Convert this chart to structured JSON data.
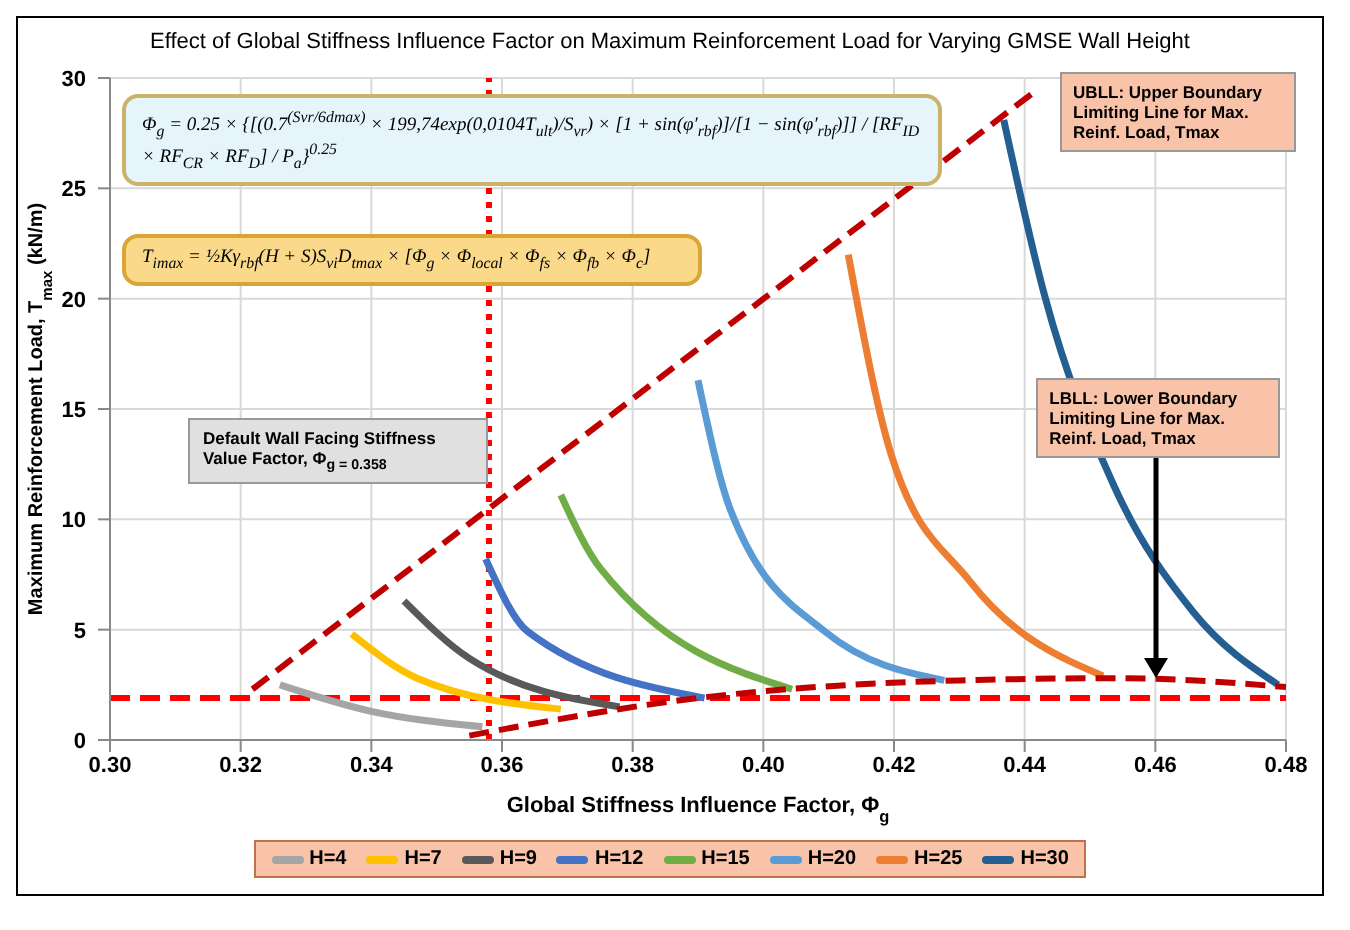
{
  "chart_data": {
    "type": "line",
    "title": "Effect of Global Stiffness Influence Factor on Maximum Reinforcement Load for Varying GMSE Wall Height",
    "xlabel": "Global Stiffness Influence Factor, Φ$_{g}$",
    "ylabel": "Maximum Reinforcement Load, T$_{max}$ (kN/m)",
    "xlim": [
      0.3,
      0.48
    ],
    "xticks": [
      {
        "value": 0.3,
        "label": "0.30"
      },
      {
        "value": 0.32,
        "label": "0.32"
      },
      {
        "value": 0.34,
        "label": "0.34"
      },
      {
        "value": 0.36,
        "label": "0.36"
      },
      {
        "value": 0.38,
        "label": "0.38"
      },
      {
        "value": 0.4,
        "label": "0.40"
      },
      {
        "value": 0.42,
        "label": "0.42"
      },
      {
        "value": 0.44,
        "label": "0.44"
      },
      {
        "value": 0.46,
        "label": "0.46"
      },
      {
        "value": 0.48,
        "label": "0.48"
      }
    ],
    "ylim": [
      0,
      30
    ],
    "yticks": [
      0,
      5,
      10,
      15,
      20,
      25,
      30
    ],
    "grid": true,
    "legend": "bottom",
    "marker": "none",
    "line_style": "solid",
    "series": [
      {
        "name": "H=4",
        "color": "#a5a5a5",
        "x": [
          0.326,
          0.34,
          0.357
        ],
        "values": [
          2.5,
          1.3,
          0.6
        ]
      },
      {
        "name": "H=7",
        "color": "#ffc000",
        "x": [
          0.337,
          0.347,
          0.369
        ],
        "values": [
          4.8,
          2.8,
          1.4
        ]
      },
      {
        "name": "H=9",
        "color": "#595959",
        "x": [
          0.345,
          0.355,
          0.378
        ],
        "values": [
          6.3,
          3.7,
          1.5
        ]
      },
      {
        "name": "H=12",
        "color": "#4472c4",
        "x": [
          0.3575,
          0.364,
          0.391
        ],
        "values": [
          8.2,
          4.9,
          1.9
        ]
      },
      {
        "name": "H=15",
        "color": "#70ad47",
        "x": [
          0.369,
          0.375,
          0.4044
        ],
        "values": [
          11.1,
          7.8,
          2.3
        ]
      },
      {
        "name": "H=20",
        "color": "#5b9bd5",
        "x": [
          0.39,
          0.395,
          0.4095,
          0.4277
        ],
        "values": [
          16.3,
          10.4,
          4.9,
          2.7
        ]
      },
      {
        "name": "H=25",
        "color": "#ed7d31",
        "x": [
          0.413,
          0.4195,
          0.4316,
          0.452
        ],
        "values": [
          22.0,
          13.0,
          7.2,
          2.9
        ]
      },
      {
        "name": "H=30",
        "color": "#255e91",
        "x": [
          0.4368,
          0.443,
          0.4537,
          0.4658,
          0.4788
        ],
        "values": [
          28.1,
          20.2,
          11.5,
          5.8,
          2.5
        ]
      },
      {
        "color": "#c00000",
        "line_style": "dashed",
        "x": [
          0.3218,
          0.4416
        ],
        "values": [
          2.3,
          29.4
        ]
      },
      {
        "color": "#c00000",
        "line_style": "dashed",
        "x": [
          0.355,
          0.39,
          0.43,
          0.455,
          0.48
        ],
        "values": [
          0.2,
          1.9,
          2.7,
          2.8,
          2.4
        ]
      }
    ],
    "ref_lines": [
      {
        "axis": "y",
        "value": 1.9,
        "color": "#ff0000",
        "line_style": "dashed"
      },
      {
        "axis": "x",
        "value": 0.358,
        "color": "#ff0000",
        "line_style": "dotted"
      }
    ],
    "annotations": [
      "Φ$_{g}$ = 0.25 × {[(0.7$^{(Svr/6dmax)}$ × 199,74exp(0,0104T$_{ult}$)/S$_{vr}$) × [1 + sin(φ′$_{rbf}$)]/[1 − sin(φ′$_{rbf}$)]] / [RF$_{ID}$ × RF$_{CR}$ × RF$_{D}$] / P$_{a}$}$^{0.25}$",
      "T$_{imax}$ = ½Kγ$_{rbf}$(H + S)S$_{vi}$D$_{tmax}$ × [Φ$_{g}$ × Φ$_{local}$ × Φ$_{fs}$ × Φ$_{fb}$ × Φ$_{c}$]",
      "Default Wall Facing Stiffness Value Factor, Φ$_{g = 0.358}$",
      {
        "text": "UBLL: Upper Boundary Limiting Line for Max. Reinf. Load, Tmax",
        "x": 0.4416,
        "y": 29.4
      },
      {
        "text": "LBLL: Lower Boundary Limiting Line for Max. Reinf. Load, Tmax",
        "x": 0.46,
        "y": 2.8
      }
    ]
  }
}
